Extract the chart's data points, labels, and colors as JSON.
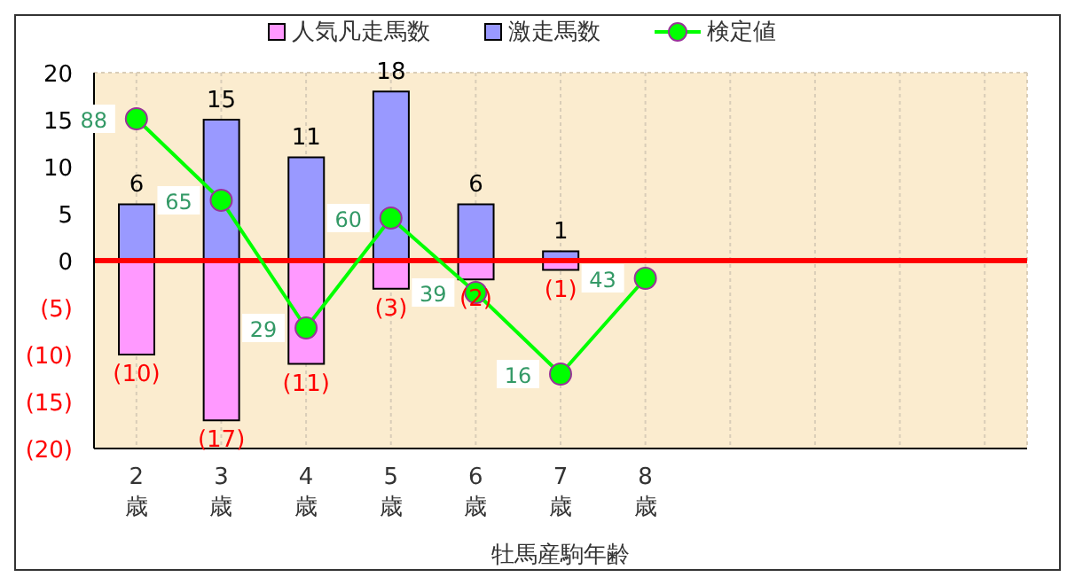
{
  "chart_data": {
    "type": "bar",
    "xlabel": "牡馬産駒年齢",
    "categories": [
      "2歳",
      "3歳",
      "4歳",
      "5歳",
      "6歳",
      "7歳",
      "8歳",
      null,
      null,
      null,
      null
    ],
    "stacked": true,
    "data_labels": true,
    "grid": true,
    "legend": "top",
    "marker": "circle",
    "ylim": [
      -20,
      20
    ],
    "yticks": [
      {
        "value": -20,
        "label": "(20)"
      },
      {
        "value": -15,
        "label": "(15)"
      },
      {
        "value": -10,
        "label": "(10)"
      },
      {
        "value": -5,
        "label": "(5)"
      },
      0,
      5,
      10,
      15,
      20
    ],
    "y2lim": [
      -5,
      101
    ],
    "ref_lines": [
      {
        "axis": "y",
        "value": 0,
        "color": "#ff0000"
      }
    ],
    "series": [
      {
        "name": "人気凡走馬数",
        "color": "#ff99ff",
        "values": [
          -10,
          -17,
          -11,
          -3,
          -2,
          -1,
          null,
          null,
          null,
          null,
          null
        ],
        "value_labels": [
          "(10)",
          "(17)",
          "(11)",
          "(3)",
          "(2)",
          "(1)",
          null,
          null,
          null,
          null,
          null
        ]
      },
      {
        "name": "激走馬数",
        "color": "#9999ff",
        "values": [
          6,
          15,
          11,
          18,
          6,
          1,
          null,
          null,
          null,
          null,
          null
        ]
      },
      {
        "name": "検定値",
        "type": "line",
        "axis": "y2",
        "color": "#00ff00",
        "values": [
          88,
          65,
          29,
          60,
          39,
          16,
          43,
          null,
          null,
          null,
          null
        ]
      }
    ]
  }
}
